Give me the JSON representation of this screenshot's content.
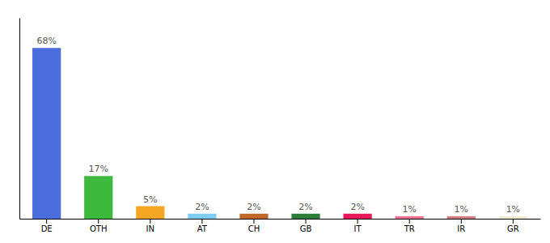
{
  "chart_data": {
    "type": "bar",
    "categories": [
      "DE",
      "OTH",
      "IN",
      "AT",
      "CH",
      "GB",
      "IT",
      "TR",
      "IR",
      "GR"
    ],
    "values": [
      68,
      17,
      5,
      2,
      2,
      2,
      2,
      1,
      1,
      1
    ],
    "value_labels": [
      "68%",
      "17%",
      "5%",
      "2%",
      "2%",
      "2%",
      "2%",
      "1%",
      "1%",
      "1%"
    ],
    "colors": [
      "#4a6fdc",
      "#3dba3d",
      "#f5a623",
      "#7ecef4",
      "#c0692a",
      "#2d7d3a",
      "#e8175a",
      "#f07090",
      "#d08080",
      "#f0ecd0"
    ],
    "ylim": [
      0,
      80
    ],
    "data_labels": true,
    "tick_labels": "x",
    "grid": false
  }
}
